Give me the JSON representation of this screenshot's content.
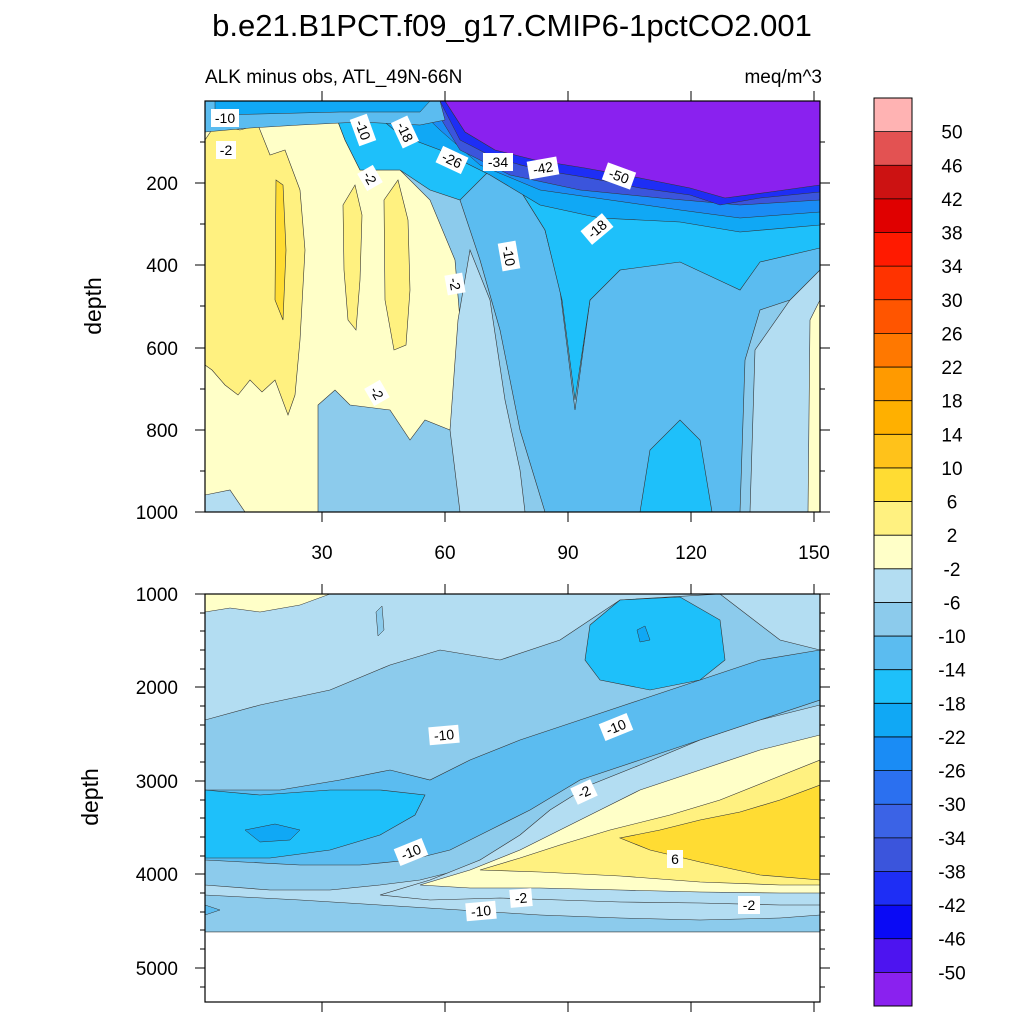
{
  "chart_data": {
    "type": "heatmap",
    "title": "b.e21.B1PCT.f09_g17.CMIP6-1pctCO2.001",
    "subtitle_left": "ALK minus obs, ATL_49N-66N",
    "subtitle_right": "meq/m^3",
    "ylabel": "depth",
    "colorbar": {
      "labels": [
        "50",
        "46",
        "42",
        "38",
        "34",
        "30",
        "26",
        "22",
        "18",
        "14",
        "10",
        "6",
        "2",
        "-2",
        "-6",
        "-10",
        "-14",
        "-18",
        "-22",
        "-26",
        "-30",
        "-34",
        "-38",
        "-42",
        "-46",
        "-50"
      ],
      "colors": [
        "#ffb3b3",
        "#e35252",
        "#cc1212",
        "#e00000",
        "#ff1a00",
        "#ff3300",
        "#ff5500",
        "#ff7800",
        "#ff9a00",
        "#ffb000",
        "#ffc21a",
        "#ffdc33",
        "#fff180",
        "#ffffc8",
        "#b3ddf2",
        "#8ccbec",
        "#5bbcf0",
        "#1ec0fa",
        "#10a8f5",
        "#1a8cf5",
        "#2b70f0",
        "#3b63e6",
        "#3b55dc",
        "#1e2ef5",
        "#0a0af5",
        "#4d14f0",
        "#8a21ef"
      ]
    },
    "panels": [
      {
        "name": "upper",
        "x_ticks": [
          "30",
          "60",
          "90",
          "120",
          "150"
        ],
        "xlim": [
          2,
          152
        ],
        "y_ticks": [
          "200",
          "400",
          "600",
          "800",
          "1000"
        ],
        "ylim": [
          0,
          1000
        ],
        "contour_labels": [
          "-10",
          "-2",
          "-10",
          "-18",
          "-26",
          "-34",
          "-42",
          "-50",
          "-2",
          "-10",
          "-18",
          "-2",
          "-2"
        ]
      },
      {
        "name": "lower",
        "y_ticks": [
          "1000",
          "2000",
          "3000",
          "4000",
          "5000"
        ],
        "ylim": [
          1000,
          5400
        ],
        "contour_labels": [
          "-10",
          "-10",
          "-2",
          "-10",
          "6",
          "-2",
          "-10",
          "-2"
        ]
      }
    ]
  }
}
